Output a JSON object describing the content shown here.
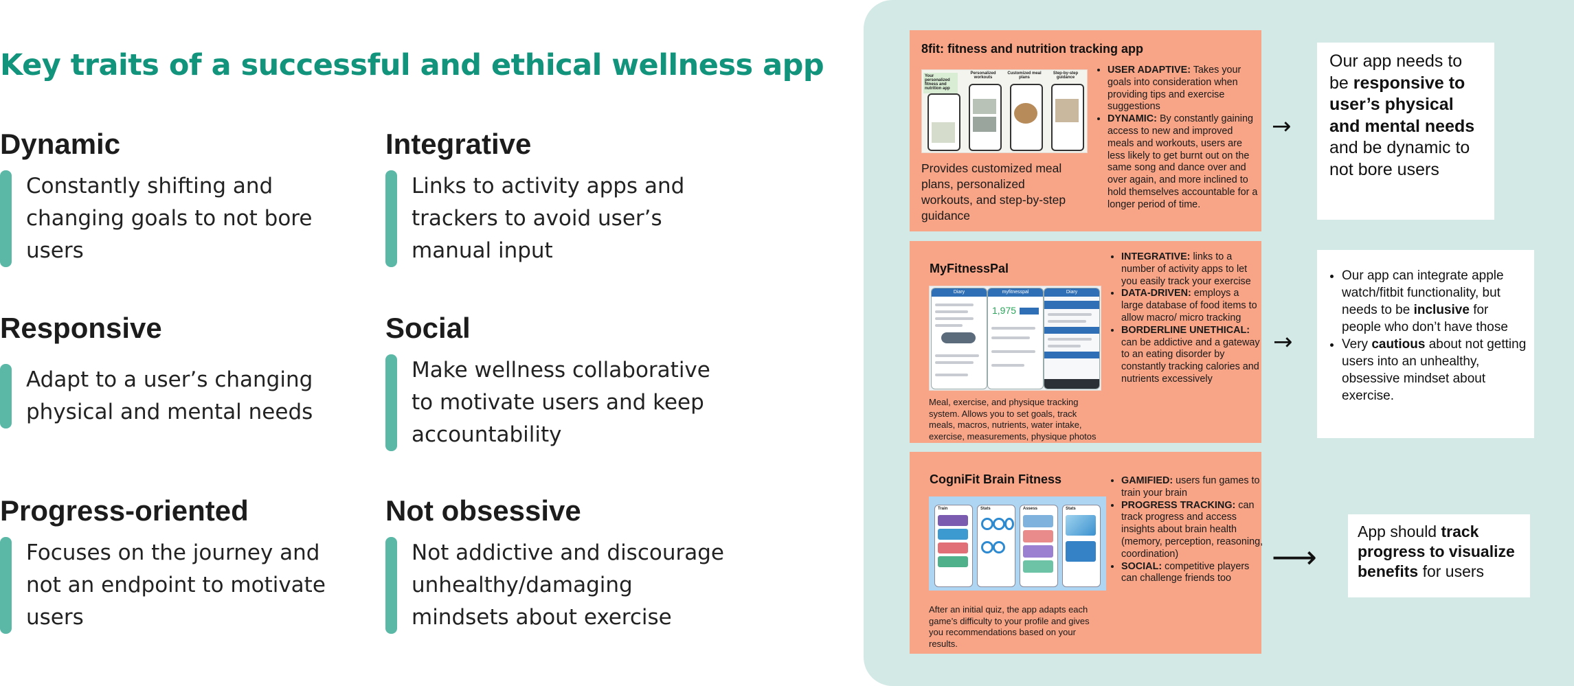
{
  "title": "Key traits of a successful and ethical wellness app",
  "traits": [
    {
      "heading": "Dynamic",
      "text": "Constantly shifting and changing goals to not bore users"
    },
    {
      "heading": "Integrative",
      "text": "Links to activity apps and trackers to avoid user’s manual input"
    },
    {
      "heading": "Responsive",
      "text": "Adapt to a user’s changing physical and mental needs"
    },
    {
      "heading": "Social",
      "text": "Make wellness collaborative to motivate users and keep accountability"
    },
    {
      "heading": "Progress-oriented",
      "text": "Focuses on the journey and not an endpoint to motivate users"
    },
    {
      "heading": "Not obsessive",
      "text": "Not addictive and discourage unhealthy/damaging mindsets about exercise"
    }
  ],
  "apps": [
    {
      "title": "8fit: fitness and nutrition tracking app",
      "screenshot_labels": [
        "Your personalized fitness and nutrition app",
        "Personalized workouts",
        "Customized meal plans",
        "Step-by-step guidance"
      ],
      "description": "Provides customized meal plans, personalized workouts, and step-by-step guidance",
      "bullets": [
        {
          "label": "USER ADAPTIVE:",
          "text": " Takes your goals into consideration when providing tips and exercise suggestions"
        },
        {
          "label": "DYNAMIC:",
          "text": " By constantly gaining access to new and improved meals and workouts, users are less likely to get burnt out on the same song and dance over and over again, and more inclined to hold themselves accountable for a longer period of time."
        }
      ]
    },
    {
      "title": "MyFitnessPal",
      "screenshot_labels": [
        "Diary",
        "myfitnesspal",
        "Diary",
        "1,975"
      ],
      "description": "Meal, exercise, and physique tracking system. Allows you to set goals, track meals, macros, nutrients, water intake, exercise, measurements, physique photos",
      "bullets": [
        {
          "label": "INTEGRATIVE:",
          "text": " links to a number of activity apps to let you easily track your exercise"
        },
        {
          "label": "DATA-DRIVEN:",
          "text": " employs a large database of food items to allow macro/ micro tracking"
        },
        {
          "label": "BORDERLINE UNETHICAL:",
          "text": " can be addictive and a gateway to an eating disorder by constantly tracking calories and nutrients excessively"
        }
      ]
    },
    {
      "title": "CogniFit Brain Fitness",
      "screenshot_labels": [
        "Train",
        "Stats",
        "Assess",
        "Stats"
      ],
      "description": "After an initial quiz, the app adapts each game’s difficulty to your profile and gives you recommendations based on your results.",
      "bullets": [
        {
          "label": "GAMIFIED:",
          "text": " users fun games to train your brain"
        },
        {
          "label": "PROGRESS TRACKING:",
          "text": " can track progress and access insights about brain health (memory, perception, reasoning, coordination)"
        },
        {
          "label": "SOCIAL:",
          "text": " competitive players can challenge friends too"
        }
      ]
    }
  ],
  "arrows": [
    "→",
    "→",
    "⟶"
  ],
  "notes": {
    "first": {
      "p1": "Our app needs to be ",
      "b1": "responsive to user’s physical and mental needs",
      "p2": " and be dynamic to not bore users"
    },
    "second": [
      {
        "p1": "Our app can integrate apple watch/fitbit functionality, but needs to be ",
        "b1": "inclusive",
        "p2": " for people who don’t have those"
      },
      {
        "p1": "Very ",
        "b1": "cautious",
        "p2": " about not getting users into an unhealthy, obsessive mindset about exercise."
      }
    ],
    "third": {
      "p1": "App should ",
      "b1": "track progress to visualize benefits",
      "p2": " for users"
    }
  },
  "colors": {
    "title": "#12937c",
    "accent_bar": "#5bb8a6",
    "panel": "#d3e9e5",
    "card": "#f7a487"
  }
}
